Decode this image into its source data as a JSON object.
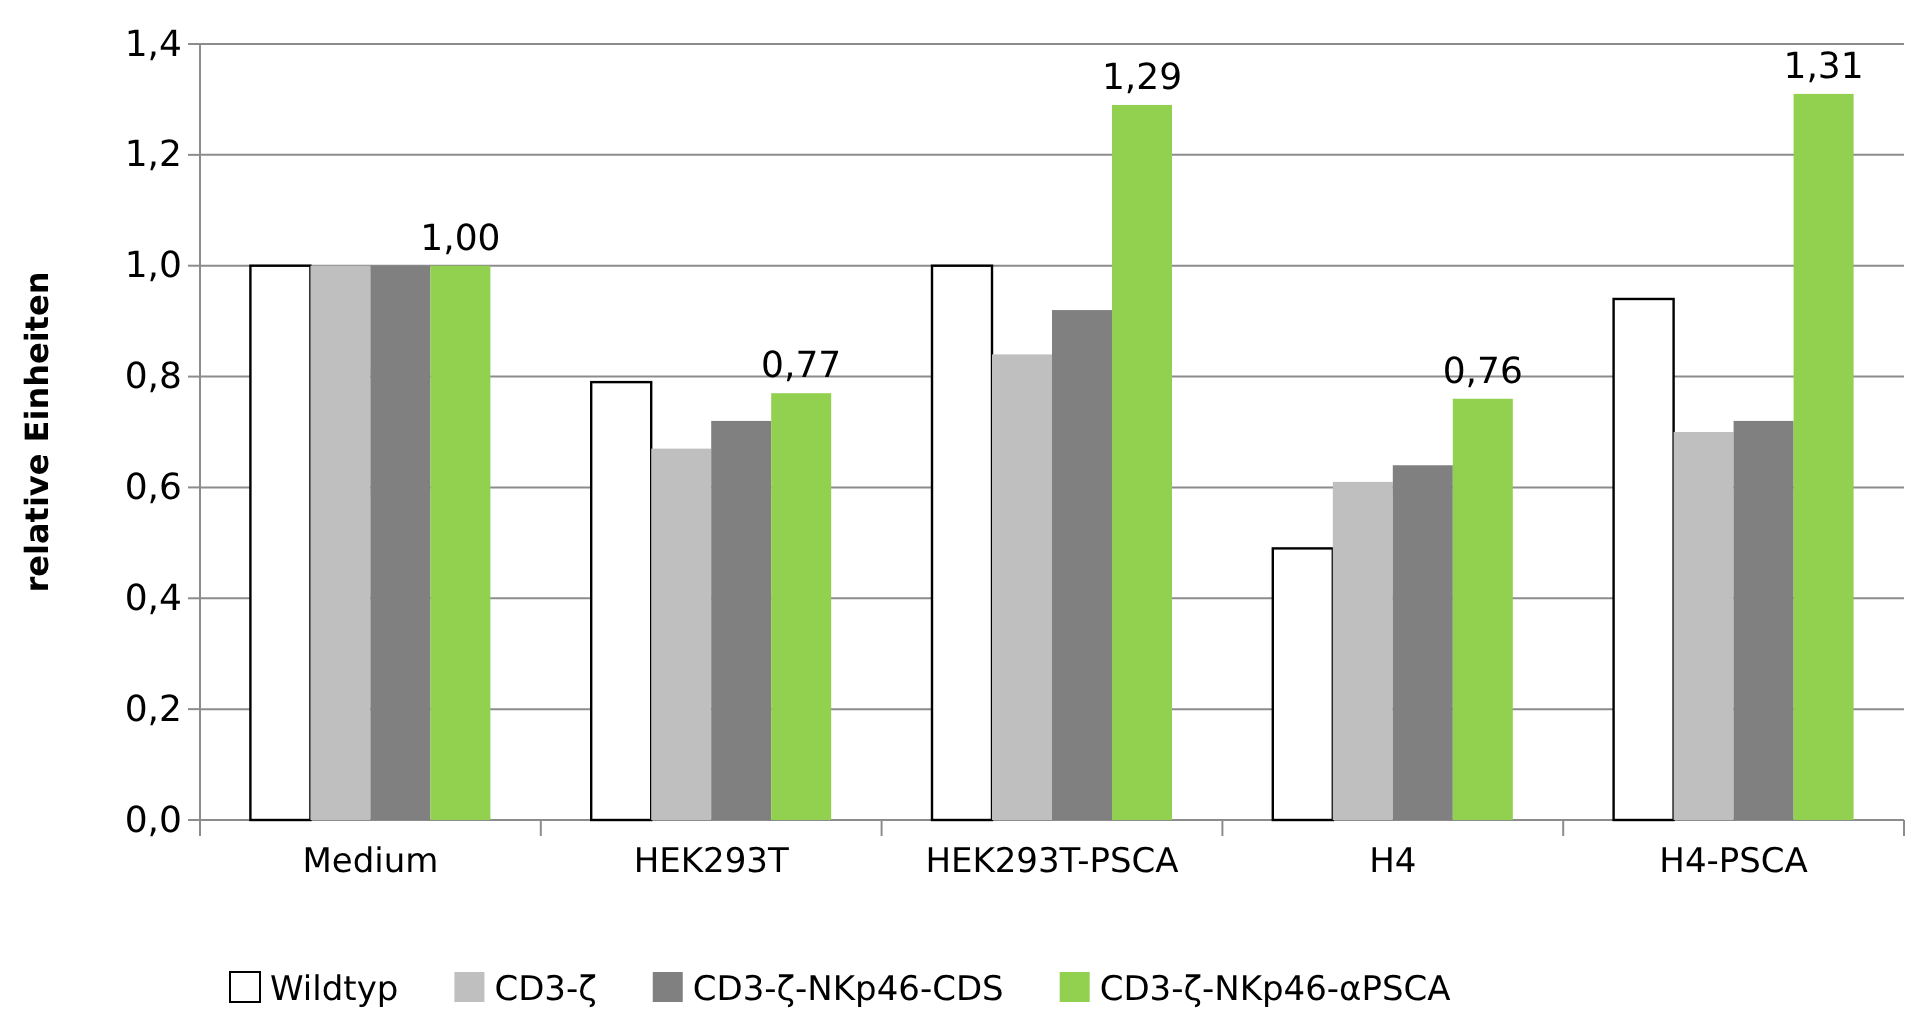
{
  "chart_data": {
    "type": "bar",
    "ylabel": "relative Einheiten",
    "categories": [
      "Medium",
      "HEK293T",
      "HEK293T-PSCA",
      "H4",
      "H4-PSCA"
    ],
    "series": [
      {
        "name": "Wildtyp",
        "color": "#ffffff",
        "values": [
          1.0,
          0.79,
          1.0,
          0.49,
          0.94
        ]
      },
      {
        "name": "CD3-ζ",
        "color": "#bfbfbf",
        "values": [
          1.0,
          0.67,
          0.84,
          0.61,
          0.7
        ]
      },
      {
        "name": "CD3-ζ-NKp46-CDS",
        "color": "#808080",
        "values": [
          1.0,
          0.72,
          0.92,
          0.64,
          0.72
        ]
      },
      {
        "name": "CD3-ζ-NKp46-αPSCA",
        "color": "#92d050",
        "values": [
          1.0,
          0.77,
          1.29,
          0.76,
          1.31
        ],
        "value_labels": [
          "1,00",
          "0,77",
          "1,29",
          "0,76",
          "1,31"
        ]
      }
    ],
    "ylim": [
      0,
      1.4
    ],
    "yticks": [
      {
        "value": 0,
        "label": "0,0"
      },
      {
        "value": 0.2,
        "label": "0,2"
      },
      {
        "value": 0.4,
        "label": "0,4"
      },
      {
        "value": 0.6,
        "label": "0,6"
      },
      {
        "value": 0.8,
        "label": "0,8"
      },
      {
        "value": 1.0,
        "label": "1,0"
      },
      {
        "value": 1.2,
        "label": "1,2"
      },
      {
        "value": 1.4,
        "label": "1,4"
      }
    ],
    "grid": "y",
    "legend": "bottom"
  }
}
